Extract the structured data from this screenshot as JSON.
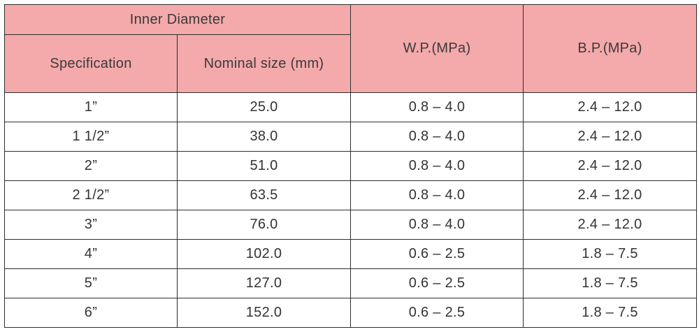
{
  "header": {
    "group_label": "Inner Diameter",
    "specification": "Specification",
    "nominal_size": "Nominal size (mm)",
    "wp": "W.P.(MPa)",
    "bp": "B.P.(MPa)"
  },
  "rows": [
    {
      "spec": "1”",
      "size": "25.0",
      "wp": "0.8 – 4.0",
      "bp": "2.4 – 12.0"
    },
    {
      "spec": "1 1/2”",
      "size": "38.0",
      "wp": "0.8 – 4.0",
      "bp": "2.4 – 12.0"
    },
    {
      "spec": "2”",
      "size": "51.0",
      "wp": "0.8 – 4.0",
      "bp": "2.4 – 12.0"
    },
    {
      "spec": "2 1/2”",
      "size": "63.5",
      "wp": "0.8 – 4.0",
      "bp": "2.4 – 12.0"
    },
    {
      "spec": "3”",
      "size": "76.0",
      "wp": "0.8 – 4.0",
      "bp": "2.4 – 12.0"
    },
    {
      "spec": "4”",
      "size": "102.0",
      "wp": "0.6 – 2.5",
      "bp": "1.8 – 7.5"
    },
    {
      "spec": "5”",
      "size": "127.0",
      "wp": "0.6 – 2.5",
      "bp": "1.8 – 7.5"
    },
    {
      "spec": "6”",
      "size": "152.0",
      "wp": "0.6 – 2.5",
      "bp": "1.8 – 7.5"
    }
  ],
  "colors": {
    "header_bg": "#f4a9ab",
    "border": "#2e2e2e",
    "text": "#333333"
  }
}
